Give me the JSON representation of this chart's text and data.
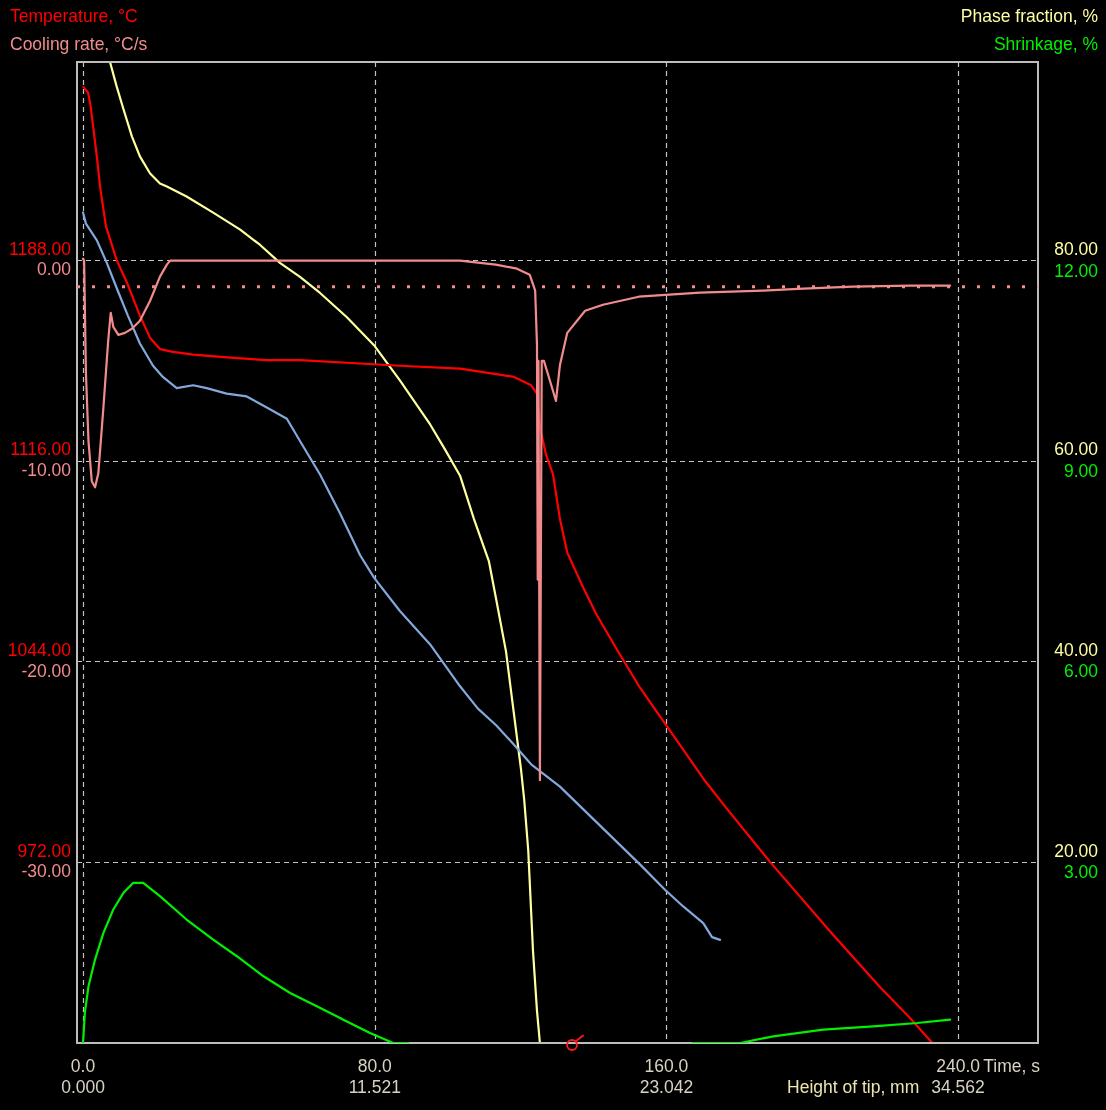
{
  "chart_data": [
    {
      "type": "line",
      "ylabel": "Temperature, °C",
      "y2label": "Phase fraction, %",
      "xlabel": "Time, s",
      "x2label": "Height of tip, mm",
      "xlim": [
        -1.65,
        261.9
      ],
      "xticks": [
        {
          "value": 0,
          "label": "0.0"
        },
        {
          "value": 80,
          "label": "80.0"
        },
        {
          "value": 160,
          "label": "160.0"
        },
        {
          "value": 240,
          "label": "240.0"
        }
      ],
      "x2lim": [
        -0.24,
        37.72
      ],
      "x2ticks": [
        {
          "value": 0,
          "label": "0.000"
        },
        11.521,
        23.042,
        34.562
      ],
      "ylim": [
        907,
        1259
      ],
      "yticks": [
        {
          "value": 972,
          "label": "972.00"
        },
        {
          "value": 1044,
          "label": "1044.00"
        },
        {
          "value": 1116,
          "label": "1116.00"
        },
        {
          "value": 1188,
          "label": "1188.00"
        }
      ],
      "y2lim": [
        2.0,
        99.7
      ],
      "y2ticks": [
        {
          "value": 20,
          "label": "20.00"
        },
        {
          "value": 40,
          "label": "40.00"
        },
        {
          "value": 60,
          "label": "60.00"
        },
        {
          "value": 80,
          "label": "80.00"
        }
      ],
      "grid": true,
      "series": [
        {
          "color": "#ff0000",
          "axis": "y",
          "x": [
            0.1,
            1.4,
            2.1,
            3.8,
            4.7,
            6.3,
            9.2,
            12.0,
            15.6,
            18.4,
            21.1,
            24.7,
            30.2,
            39.5,
            50.5,
            59.5,
            86.9,
            103.4,
            113.3,
            118.2,
            122.9,
            124.5,
            125.3,
            127.0,
            128.9,
            130.8,
            132.8,
            136.6,
            140.7,
            146.5,
            152.5,
            170.6,
            176.6,
            188.4,
            204.9,
            218.6,
            226.8,
            232.9
          ],
          "values": [
            1250,
            1248,
            1243,
            1225,
            1214,
            1200,
            1188,
            1180,
            1168,
            1160,
            1156,
            1155,
            1154,
            1153,
            1152,
            1152,
            1150,
            1149,
            1147,
            1146,
            1143,
            1140,
            1128,
            1118,
            1111,
            1095,
            1083,
            1072,
            1061,
            1048,
            1035,
            1001,
            991,
            972,
            947,
            927,
            916,
            907
          ]
        },
        {
          "color": "#82a8dc",
          "axis": "y",
          "x": [
            0,
            0.8,
            3.8,
            6.5,
            9.2,
            12.3,
            15.6,
            19.2,
            21.9,
            25.7,
            30.2,
            33.9,
            39.4,
            44.9,
            50.4,
            55.9,
            59.5,
            65.0,
            70.5,
            76.0,
            79.8,
            86.9,
            95.2,
            103.4,
            108.3,
            113.3,
            118.2,
            122.9,
            130.8,
            141.8,
            152.8,
            159.6,
            164.6,
            170.1,
            172.5,
            174.7
          ],
          "values": [
            1205,
            1201,
            1195,
            1187,
            1178,
            1168,
            1158,
            1150,
            1146,
            1142,
            1143,
            1142,
            1140,
            1139,
            1135,
            1131,
            1123,
            1111,
            1097,
            1082,
            1074,
            1062,
            1050,
            1035,
            1027,
            1021,
            1014,
            1007,
            999,
            985,
            971,
            962,
            956,
            950,
            945,
            944
          ]
        },
        {
          "color": "#ffffa0",
          "axis": "y2",
          "x": [
            7.4,
            9.2,
            11.1,
            13.4,
            15.6,
            18.4,
            21.1,
            23.0,
            28.4,
            35.7,
            43.1,
            48.5,
            54.0,
            59.5,
            65.0,
            72.3,
            79.8,
            86.9,
            95.2,
            99.3,
            103.4,
            107.2,
            111.3,
            113.2,
            116.0,
            118.1,
            120.1,
            121.0,
            122.1,
            123.4,
            124.5,
            125.3
          ],
          "values": [
            99.7,
            97.3,
            95.0,
            92.3,
            90.3,
            88.6,
            87.6,
            87.3,
            86.3,
            84.7,
            83.0,
            81.5,
            79.7,
            78.3,
            76.7,
            74.3,
            71.5,
            68.0,
            63.6,
            61.1,
            58.5,
            54.2,
            50.0,
            46.4,
            41.0,
            35.0,
            29.3,
            26.2,
            21.2,
            11.2,
            5.2,
            2.0
          ]
        }
      ]
    },
    {
      "type": "line",
      "ylabel": "Cooling rate, °C/s",
      "y2label": "Shrinkage, %",
      "tick_labels": "y",
      "xlim": [
        -1.65,
        261.9
      ],
      "ylim": [
        -39.0,
        9.9
      ],
      "yticks": [
        {
          "value": -30,
          "label": "-30.00"
        },
        {
          "value": -20,
          "label": "-20.00"
        },
        {
          "value": -10,
          "label": "-10.00"
        },
        {
          "value": 0,
          "label": "0.00"
        }
      ],
      "y2lim": [
        0.3,
        15.0
      ],
      "y2ticks": [
        {
          "value": 3,
          "label": "3.00"
        },
        {
          "value": 6,
          "label": "6.00"
        },
        {
          "value": 9,
          "label": "9.00"
        },
        {
          "value": 12,
          "label": "12.00"
        }
      ],
      "ref_lines": [
        {
          "axis": "y",
          "value": -1.3,
          "color": "#f28c8c",
          "line_style": "dotted"
        }
      ],
      "series": [
        {
          "color": "#f28c8c",
          "axis": "y",
          "x": [
            0,
            0.3,
            0.8,
            1.5,
            2.4,
            3.3,
            4.2,
            5.6,
            6.9,
            7.6,
            8.3,
            9.7,
            11.5,
            13.4,
            15.6,
            18.4,
            21.1,
            23.0,
            23.9,
            103.4,
            113.2,
            119.0,
            122.5,
            124.0,
            124.5,
            124.7,
            124.9,
            125.3,
            125.8,
            126.4,
            128.9,
            129.7,
            130.8,
            132.8,
            137.7,
            142.6,
            152.4,
            169.2,
            186.5,
            197.5,
            211.2,
            226.8,
            237.8
          ],
          "values": [
            0.1,
            0,
            -5.6,
            -9.0,
            -11.0,
            -11.3,
            -10.6,
            -7.3,
            -4.0,
            -2.6,
            -3.3,
            -3.7,
            -3.6,
            -3.4,
            -3.0,
            -2.0,
            -0.8,
            -0.2,
            0,
            0,
            -0.2,
            -0.4,
            -0.7,
            -1.5,
            -4.2,
            -15.9,
            -5.0,
            -25.9,
            -5.0,
            -5.0,
            -6.5,
            -7.0,
            -5.2,
            -3.6,
            -2.5,
            -2.2,
            -1.8,
            -1.6,
            -1.5,
            -1.4,
            -1.3,
            -1.25,
            -1.25
          ]
        },
        {
          "color": "#00f000",
          "axis": "y2",
          "x": [
            0,
            0.5,
            1.5,
            3.3,
            5.6,
            8.3,
            11.1,
            13.8,
            16.5,
            21.1,
            28.4,
            35.7,
            42.2,
            49.5,
            56.8,
            64.1,
            71.4,
            78.7,
            85.1,
            89.2,
            120,
            167.3,
            180.2,
            189.3,
            203.0,
            216.7,
            228.8,
            237.8
          ],
          "values": [
            0.3,
            0.75,
            1.15,
            1.55,
            1.95,
            2.3,
            2.55,
            2.7,
            2.7,
            2.5,
            2.15,
            1.85,
            1.6,
            1.3,
            1.05,
            0.85,
            0.65,
            0.45,
            0.3,
            0.3,
            null,
            0.3,
            0.3,
            0.4,
            0.5,
            0.55,
            0.6,
            0.65
          ]
        }
      ]
    }
  ]
}
